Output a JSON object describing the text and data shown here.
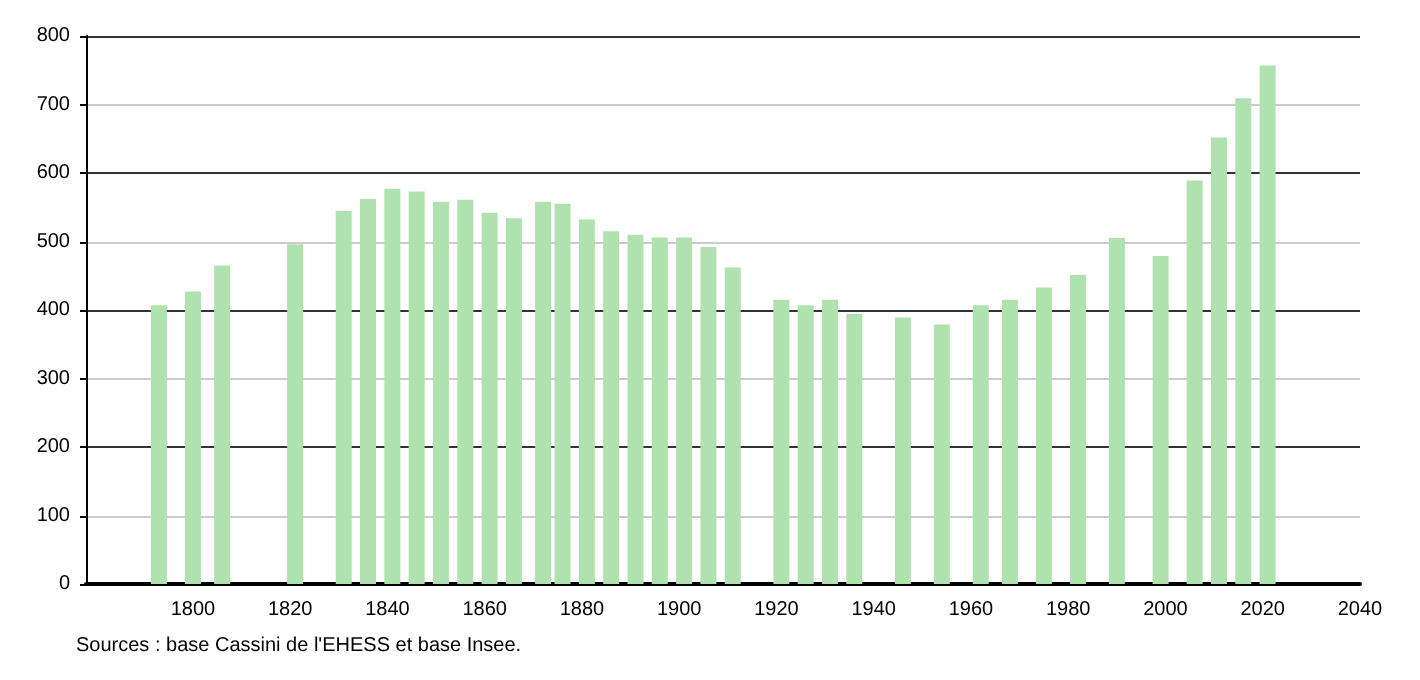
{
  "chart_data": {
    "type": "bar",
    "x": [
      1793,
      1800,
      1806,
      1821,
      1831,
      1836,
      1841,
      1846,
      1851,
      1856,
      1861,
      1866,
      1872,
      1876,
      1881,
      1886,
      1891,
      1896,
      1901,
      1906,
      1911,
      1921,
      1926,
      1931,
      1936,
      1946,
      1954,
      1962,
      1968,
      1975,
      1982,
      1990,
      1999,
      2006,
      2011,
      2016,
      2021
    ],
    "values": [
      407,
      427,
      465,
      496,
      545,
      562,
      577,
      573,
      558,
      561,
      542,
      534,
      558,
      555,
      532,
      515,
      510,
      506,
      506,
      492,
      462,
      415,
      407,
      415,
      394,
      389,
      379,
      407,
      415,
      433,
      451,
      505,
      479,
      589,
      652,
      709,
      757
    ],
    "color": "#b0e2b0",
    "xlim": [
      1778,
      2040
    ],
    "xticks": [
      1800,
      1820,
      1840,
      1860,
      1880,
      1900,
      1920,
      1940,
      1960,
      1980,
      2000,
      2020,
      2040
    ],
    "ylim": [
      0,
      800
    ],
    "yticks": [
      0,
      100,
      200,
      300,
      400,
      500,
      600,
      700,
      800
    ],
    "grid": "y",
    "annotations": [
      "Sources : base Cassini de l'EHESS et base Insee."
    ]
  }
}
